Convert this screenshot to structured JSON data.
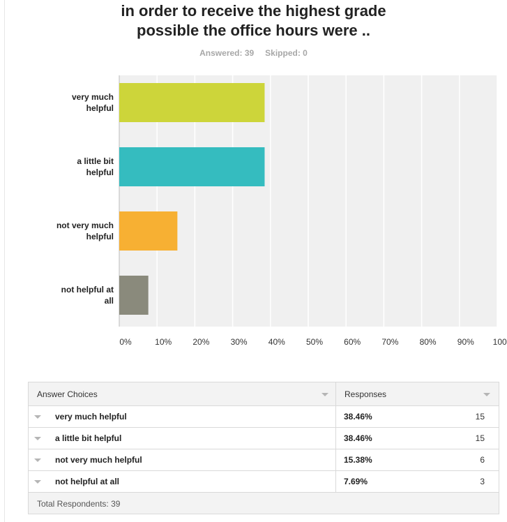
{
  "survey": {
    "title_line1": "in order to receive the highest grade",
    "title_line2": "possible the office hours were ..",
    "answered": "Answered: 39",
    "skipped": "Skipped: 0"
  },
  "chart_data": {
    "type": "bar",
    "orientation": "horizontal",
    "categories": [
      "very much helpful",
      "a little bit helpful",
      "not very much helpful",
      "not helpful at all"
    ],
    "category_lines": [
      [
        "very much",
        "helpful"
      ],
      [
        "a little bit",
        "helpful"
      ],
      [
        "not very much",
        "helpful"
      ],
      [
        "not helpful at",
        "all"
      ]
    ],
    "values": [
      38.46,
      38.46,
      15.38,
      7.69
    ],
    "colors": [
      "#cdd53a",
      "#35bcbf",
      "#f7b033",
      "#8a8a7c"
    ],
    "xlim": [
      0,
      100
    ],
    "xticks": [
      "0%",
      "10%",
      "20%",
      "30%",
      "40%",
      "50%",
      "60%",
      "70%",
      "80%",
      "90%",
      "100%"
    ],
    "grid": true,
    "legend": "none"
  },
  "table": {
    "header_choices": "Answer Choices",
    "header_responses": "Responses",
    "rows": [
      {
        "choice": "very much helpful",
        "percent": "38.46%",
        "count": "15"
      },
      {
        "choice": "a little bit helpful",
        "percent": "38.46%",
        "count": "15"
      },
      {
        "choice": "not very much helpful",
        "percent": "15.38%",
        "count": "6"
      },
      {
        "choice": "not helpful at all",
        "percent": "7.69%",
        "count": "3"
      }
    ],
    "footer": "Total Respondents: 39"
  }
}
